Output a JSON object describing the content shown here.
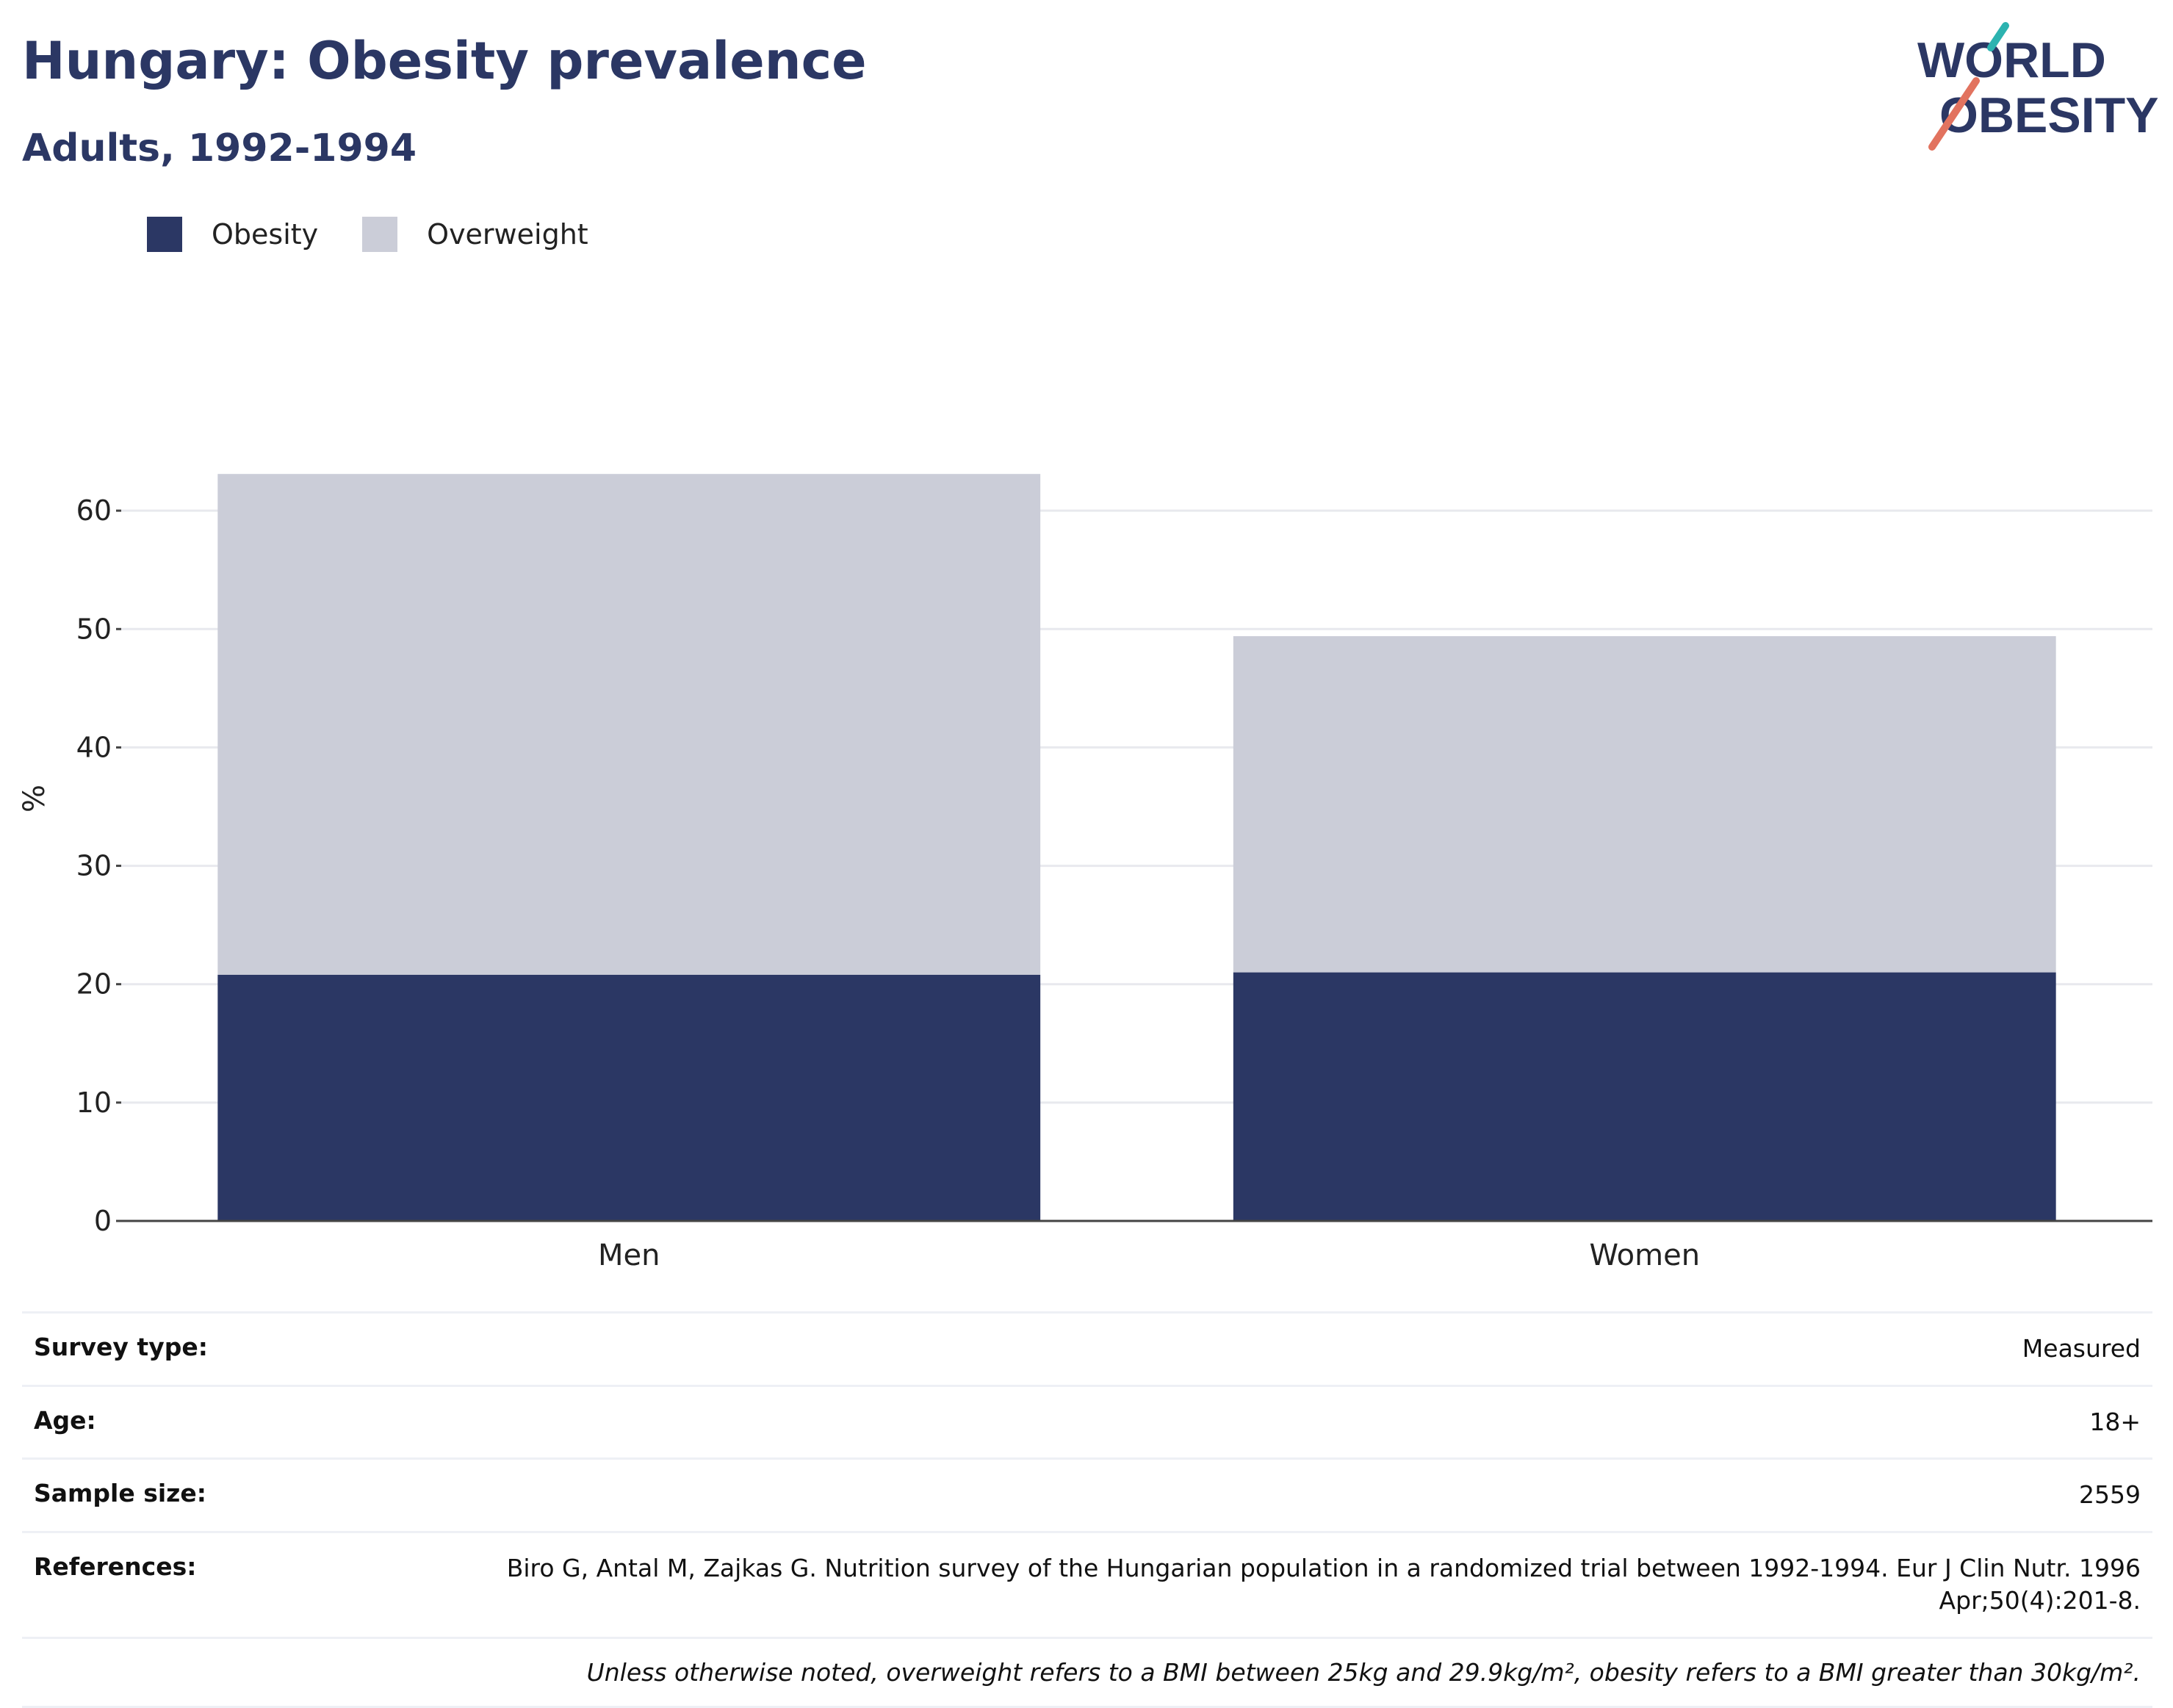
{
  "header": {
    "title": "Hungary: Obesity prevalence",
    "subtitle": "Adults, 1992-1994"
  },
  "logo": {
    "line1": "WORLD",
    "line2": "OBESITY",
    "colors": {
      "text": "#2b3764",
      "teal": "#2cb3b0",
      "coral": "#e2735f"
    }
  },
  "legend": [
    {
      "label": "Obesity",
      "color": "#2b3764"
    },
    {
      "label": "Overweight",
      "color": "#cbcdd8"
    }
  ],
  "chart_data": {
    "type": "bar",
    "stacked": true,
    "categories": [
      "Men",
      "Women"
    ],
    "series": [
      {
        "name": "Obesity",
        "values": [
          20.8,
          21.0
        ],
        "color": "#2b3764"
      },
      {
        "name": "Overweight",
        "values": [
          42.3,
          28.4
        ],
        "color": "#cbcdd8"
      }
    ],
    "ylabel": "%",
    "ylim": [
      0,
      70
    ],
    "yticks": [
      0,
      10,
      20,
      30,
      40,
      50,
      60
    ],
    "grid": true,
    "legend_position": "top-left"
  },
  "info": [
    {
      "key": "Survey type:",
      "value": "Measured"
    },
    {
      "key": "Age:",
      "value": "18+"
    },
    {
      "key": "Sample size:",
      "value": "2559"
    },
    {
      "key": "References:",
      "value": "Biro G, Antal M, Zajkas G. Nutrition survey of the Hungarian population in a randomized trial between 1992-1994. Eur J Clin Nutr. 1996 Apr;50(4):201-8."
    }
  ],
  "note": "Unless otherwise noted, overweight refers to a BMI between 25kg and 29.9kg/m², obesity refers to a BMI greater than 30kg/m²."
}
